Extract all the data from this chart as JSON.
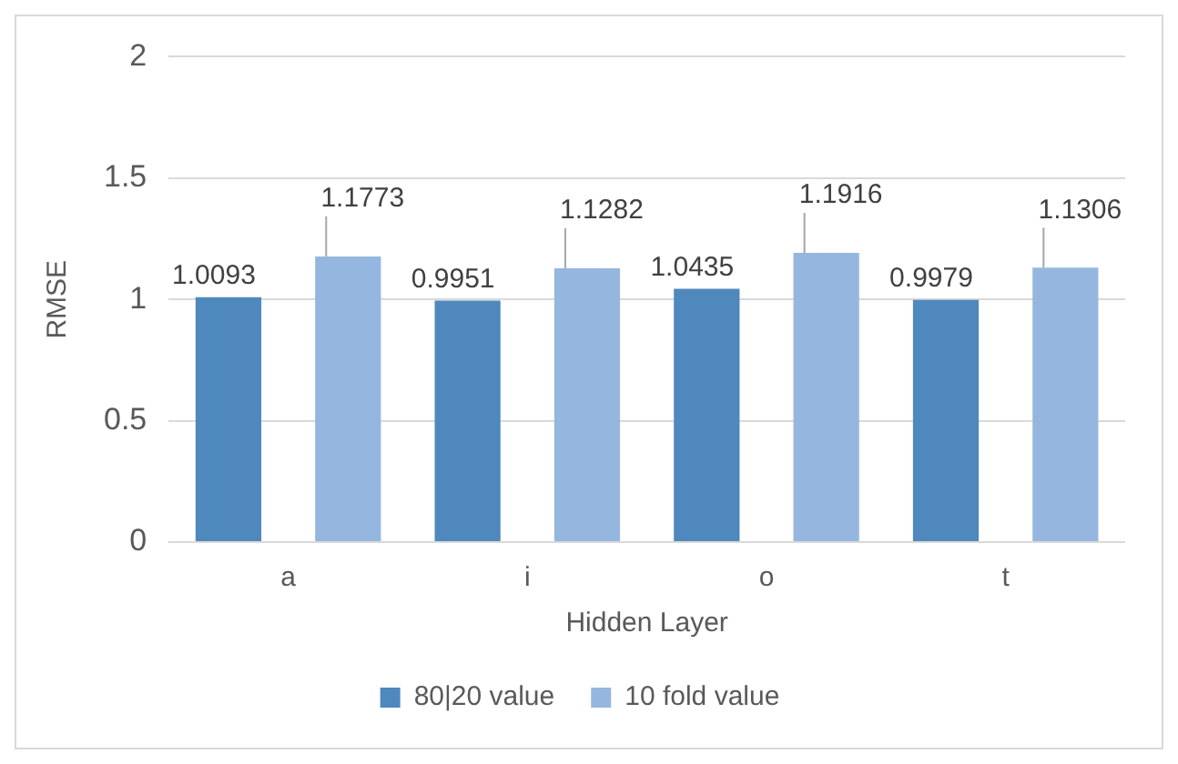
{
  "chart_data": {
    "type": "bar",
    "xlabel": "Hidden Layer",
    "ylabel": "RMSE",
    "categories": [
      "a",
      "i",
      "o",
      "t"
    ],
    "series": [
      {
        "name": "80|20 value",
        "color": "#4f88bd",
        "values": [
          1.0093,
          0.9951,
          1.0435,
          0.9979
        ]
      },
      {
        "name": "10 fold value",
        "color": "#95b7df",
        "values": [
          1.1773,
          1.1282,
          1.1916,
          1.1306
        ]
      }
    ],
    "ylim": [
      0,
      2
    ],
    "yticks": [
      0,
      0.5,
      1,
      1.5,
      2
    ],
    "grid": "y",
    "legend": "bottom",
    "data_labels": true
  }
}
